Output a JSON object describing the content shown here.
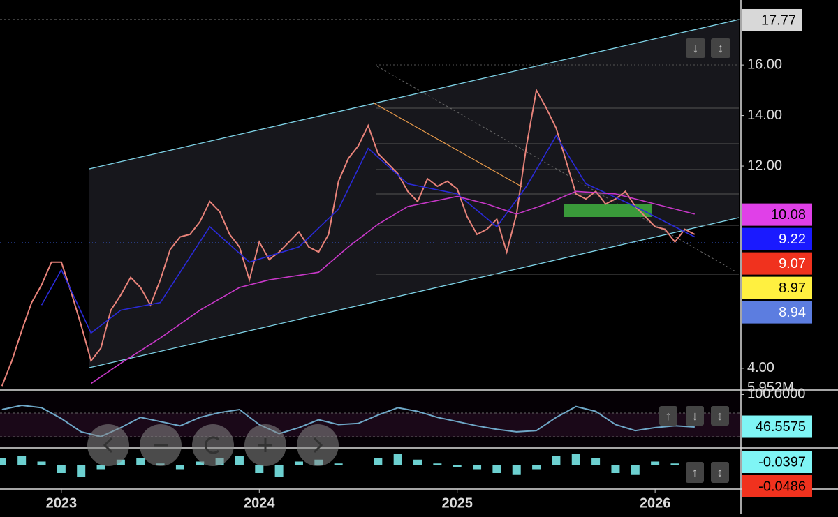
{
  "chart_data": [
    {
      "type": "line",
      "xlim": [
        2022.69,
        2026.43
      ],
      "xticks": [
        2023,
        2024,
        2025,
        2026
      ],
      "ylim": [
        3.17,
        18.57
      ],
      "yticks": [
        {
          "value": 4,
          "label": "4.00"
        },
        {
          "value": 12,
          "label": "12.00"
        },
        {
          "value": 14,
          "label": "14.00"
        },
        {
          "value": 16,
          "label": "16.00"
        }
      ],
      "top_marker": 17.77,
      "price_markers": [
        {
          "value": 10.08,
          "color": "#e040e8"
        },
        {
          "value": 9.22,
          "color": "#1a1aff"
        },
        {
          "value": 9.07,
          "color": "#f0321e"
        },
        {
          "value": 8.97,
          "color": "#fff040"
        },
        {
          "value": 8.94,
          "color": "#5c7de0"
        }
      ],
      "volume_label": "5.952M",
      "series": [
        {
          "color": "#e8837a",
          "x": [
            2022.7,
            2022.75,
            2022.8,
            2022.85,
            2022.9,
            2022.95,
            2023.0,
            2023.05,
            2023.1,
            2023.15,
            2023.2,
            2023.25,
            2023.3,
            2023.35,
            2023.4,
            2023.45,
            2023.5,
            2023.55,
            2023.6,
            2023.65,
            2023.7,
            2023.75,
            2023.8,
            2023.85,
            2023.9,
            2023.95,
            2024.0,
            2024.05,
            2024.1,
            2024.15,
            2024.2,
            2024.25,
            2024.3,
            2024.35,
            2024.4,
            2024.45,
            2024.5,
            2024.55,
            2024.6,
            2024.65,
            2024.7,
            2024.75,
            2024.8,
            2024.85,
            2024.9,
            2024.95,
            2025.0,
            2025.05,
            2025.1,
            2025.15,
            2025.2,
            2025.25,
            2025.3,
            2025.35,
            2025.4,
            2025.45,
            2025.5,
            2025.55,
            2025.6,
            2025.65,
            2025.7,
            2025.75,
            2025.8,
            2025.85,
            2025.9,
            2025.95,
            2026.0,
            2026.05,
            2026.1,
            2026.15,
            2026.2
          ],
          "values": [
            3.3,
            4.3,
            5.5,
            6.6,
            7.3,
            8.2,
            8.2,
            7.0,
            5.7,
            4.3,
            4.8,
            6.3,
            6.9,
            7.6,
            7.2,
            6.5,
            7.5,
            8.7,
            9.2,
            9.3,
            9.8,
            10.6,
            10.2,
            9.3,
            8.8,
            7.5,
            9.0,
            8.3,
            8.6,
            9.0,
            9.4,
            8.8,
            8.6,
            9.3,
            11.4,
            12.3,
            12.8,
            13.6,
            12.5,
            12.1,
            11.7,
            11.0,
            10.6,
            11.5,
            11.2,
            11.4,
            11.1,
            10.0,
            9.3,
            9.5,
            9.9,
            8.6,
            10.1,
            12.8,
            15.0,
            14.3,
            13.5,
            12.2,
            10.9,
            10.7,
            11.0,
            10.5,
            10.7,
            11.0,
            10.4,
            10.0,
            9.6,
            9.5,
            9.0,
            9.5,
            9.3
          ]
        },
        {
          "color": "#2a2ad8",
          "x": [
            2022.9,
            2023.0,
            2023.15,
            2023.3,
            2023.5,
            2023.75,
            2023.95,
            2024.2,
            2024.4,
            2024.55,
            2024.75,
            2025.0,
            2025.2,
            2025.35,
            2025.5,
            2025.65,
            2025.9,
            2026.2
          ],
          "values": [
            6.5,
            7.9,
            5.4,
            6.3,
            6.6,
            9.6,
            8.2,
            8.8,
            10.3,
            12.7,
            11.3,
            10.9,
            9.6,
            11.2,
            13.2,
            11.3,
            10.4,
            9.2
          ]
        },
        {
          "color": "#c838c8",
          "x": [
            2023.15,
            2023.3,
            2023.5,
            2023.7,
            2023.9,
            2024.05,
            2024.3,
            2024.45,
            2024.6,
            2024.75,
            2025.0,
            2025.15,
            2025.3,
            2025.45,
            2025.6,
            2025.8,
            2026.0,
            2026.2
          ],
          "values": [
            3.4,
            4.2,
            5.2,
            6.3,
            7.2,
            7.5,
            7.8,
            8.8,
            9.7,
            10.4,
            10.8,
            10.5,
            10.1,
            10.5,
            11.0,
            10.9,
            10.5,
            10.1
          ]
        }
      ]
    },
    {
      "type": "line",
      "xlim": [
        2022.69,
        2026.43
      ],
      "ylim": [
        13.5,
        104
      ],
      "yticks": [
        {
          "value": 100,
          "label": "100.0000"
        }
      ],
      "marker": {
        "value": 46.5575,
        "color": "#7ff5f5"
      },
      "series": [
        {
          "color": "#6fa8c8",
          "x": [
            2022.7,
            2022.8,
            2022.9,
            2023.0,
            2023.1,
            2023.2,
            2023.3,
            2023.4,
            2023.5,
            2023.6,
            2023.7,
            2023.8,
            2023.9,
            2024.0,
            2024.1,
            2024.2,
            2024.3,
            2024.4,
            2024.5,
            2024.6,
            2024.7,
            2024.8,
            2024.9,
            2025.0,
            2025.1,
            2025.2,
            2025.3,
            2025.4,
            2025.5,
            2025.6,
            2025.7,
            2025.8,
            2025.9,
            2026.0,
            2026.1,
            2026.2
          ],
          "values": [
            75,
            82,
            78,
            60,
            38,
            30,
            45,
            62,
            55,
            48,
            62,
            70,
            75,
            50,
            35,
            45,
            58,
            50,
            52,
            66,
            78,
            72,
            62,
            55,
            48,
            42,
            38,
            40,
            62,
            80,
            72,
            50,
            40,
            45,
            48,
            46
          ]
        }
      ]
    },
    {
      "type": "bar",
      "xlim": [
        2022.69,
        2026.43
      ],
      "ylim": [
        -0.6,
        0.4
      ],
      "markers": [
        {
          "value": -0.0397,
          "color": "#7ff5f5"
        },
        {
          "value": -0.0486,
          "color": "#f0321e"
        }
      ],
      "series": [
        {
          "color": "#7ff5f5",
          "x": [
            2022.7,
            2022.8,
            2022.9,
            2023.0,
            2023.1,
            2023.2,
            2023.3,
            2023.4,
            2023.5,
            2023.6,
            2023.7,
            2023.8,
            2023.9,
            2024.0,
            2024.1,
            2024.2,
            2024.3,
            2024.4,
            2024.5,
            2024.6,
            2024.7,
            2024.8,
            2024.9,
            2025.0,
            2025.1,
            2025.2,
            2025.3,
            2025.4,
            2025.5,
            2025.6,
            2025.7,
            2025.8,
            2025.9,
            2026.0,
            2026.1,
            2026.2
          ],
          "values": [
            0.2,
            0.25,
            0.1,
            -0.2,
            -0.3,
            -0.1,
            0.15,
            0.2,
            0.05,
            -0.1,
            0.1,
            0.2,
            0.25,
            -0.2,
            -0.3,
            0.1,
            0.15,
            0.05,
            0.0,
            0.2,
            0.3,
            0.15,
            0.05,
            -0.05,
            -0.1,
            -0.2,
            -0.25,
            -0.1,
            0.25,
            0.3,
            0.2,
            -0.2,
            -0.25,
            0.1,
            0.05,
            -0.04
          ]
        }
      ]
    }
  ]
}
